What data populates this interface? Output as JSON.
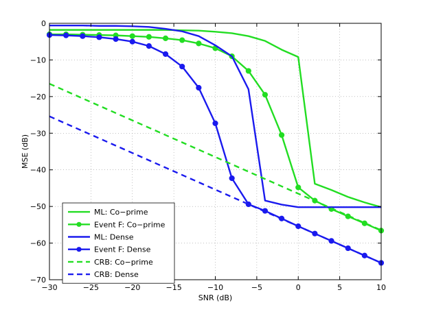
{
  "chart_data": {
    "type": "line",
    "title": "",
    "xlabel": "SNR (dB)",
    "ylabel": "MSE (dB)",
    "xlim": [
      -30,
      10
    ],
    "ylim": [
      -70,
      0
    ],
    "xticks": [
      -30,
      -25,
      -20,
      -15,
      -10,
      -5,
      0,
      5,
      10
    ],
    "yticks": [
      0,
      -10,
      -20,
      -30,
      -40,
      -50,
      -60,
      -70
    ],
    "xtick_labels": [
      "−30",
      "−25",
      "−20",
      "−15",
      "−10",
      "−5",
      "0",
      "5",
      "10"
    ],
    "ytick_labels": [
      "0",
      "−10",
      "−20",
      "−30",
      "−40",
      "−50",
      "−60",
      "−70"
    ],
    "grid": "dotted",
    "legend_position": "bottom-left",
    "series": [
      {
        "name": "ML: Co−prime",
        "color": "#22dd22",
        "style": "solid",
        "marker": "none",
        "x": [
          -30,
          -28,
          -26,
          -24,
          -22,
          -20,
          -18,
          -16,
          -14,
          -12,
          -10,
          -8,
          -6,
          -4,
          -2,
          0,
          2,
          4,
          6,
          8,
          10
        ],
        "y": [
          -1.8,
          -1.8,
          -1.8,
          -1.8,
          -1.8,
          -1.8,
          -1.8,
          -1.8,
          -1.9,
          -2.0,
          -2.3,
          -2.7,
          -3.5,
          -4.8,
          -7.2,
          -9.2,
          -43.8,
          -45.5,
          -47.4,
          -48.9,
          -50.2
        ]
      },
      {
        "name": "Event F: Co−prime",
        "color": "#22dd22",
        "style": "solid",
        "marker": "circle",
        "x": [
          -30,
          -28,
          -26,
          -24,
          -22,
          -20,
          -18,
          -16,
          -14,
          -12,
          -10,
          -8,
          -6,
          -4,
          -2,
          0,
          2,
          4,
          6,
          8,
          10
        ],
        "y": [
          -3.0,
          -3.0,
          -3.1,
          -3.2,
          -3.3,
          -3.5,
          -3.7,
          -4.1,
          -4.6,
          -5.5,
          -6.8,
          -9.0,
          -13.0,
          -19.5,
          -30.5,
          -44.8,
          -48.4,
          -50.7,
          -52.7,
          -54.6,
          -56.6
        ]
      },
      {
        "name": "ML: Dense",
        "color": "#1a1aee",
        "style": "solid",
        "marker": "none",
        "x": [
          -30,
          -28,
          -26,
          -24,
          -22,
          -20,
          -18,
          -16,
          -14,
          -12,
          -10,
          -8,
          -6,
          -4,
          -2,
          0,
          2,
          4,
          6,
          8,
          10
        ],
        "y": [
          -0.6,
          -0.6,
          -0.6,
          -0.7,
          -0.7,
          -0.8,
          -1.0,
          -1.5,
          -2.2,
          -3.5,
          -6.0,
          -9.0,
          -18.0,
          -48.4,
          -49.5,
          -50.2,
          -50.2,
          -50.2,
          -50.2,
          -50.2,
          -50.2
        ]
      },
      {
        "name": "Event F: Dense",
        "color": "#1a1aee",
        "style": "solid",
        "marker": "circle",
        "x": [
          -30,
          -28,
          -26,
          -24,
          -22,
          -20,
          -18,
          -16,
          -14,
          -12,
          -10,
          -8,
          -6,
          -4,
          -2,
          0,
          2,
          4,
          6,
          8,
          10
        ],
        "y": [
          -3.2,
          -3.3,
          -3.5,
          -3.8,
          -4.3,
          -5.0,
          -6.2,
          -8.4,
          -11.8,
          -17.6,
          -27.3,
          -42.3,
          -49.4,
          -51.2,
          -53.3,
          -55.4,
          -57.4,
          -59.4,
          -61.4,
          -63.4,
          -65.4
        ]
      },
      {
        "name": "CRB: Co−prime",
        "color": "#22dd22",
        "style": "dashed",
        "marker": "none",
        "x": [
          -30,
          10
        ],
        "y": [
          -16.5,
          -56.5
        ]
      },
      {
        "name": "CRB: Dense",
        "color": "#1a1aee",
        "style": "dashed",
        "marker": "none",
        "x": [
          -30,
          10
        ],
        "y": [
          -25.4,
          -65.4
        ]
      }
    ]
  }
}
